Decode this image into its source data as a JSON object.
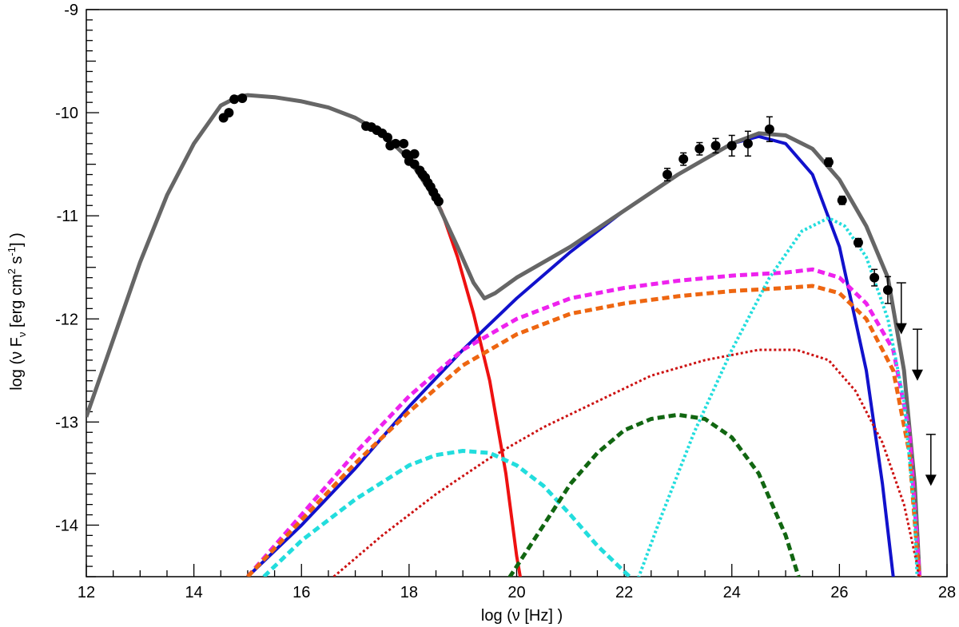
{
  "chart_data": {
    "type": "line",
    "xlabel": "log (ν [Hz] )",
    "ylabel": "log (ν F",
    "ylabel_sub": "ν",
    "ylabel_rest": " [erg cm",
    "ylabel_sup": "2",
    "ylabel_rest2": " s",
    "ylabel_sup2": "-1",
    "ylabel_end": "] )",
    "xlim": [
      12,
      28
    ],
    "ylim": [
      -14.5,
      -9
    ],
    "x_ticks": [
      12,
      14,
      16,
      18,
      20,
      22,
      24,
      26,
      28
    ],
    "y_ticks": [
      -14,
      -13,
      -12,
      -11,
      -10,
      -9
    ],
    "x_tick_labels": [
      "12",
      "14",
      "16",
      "18",
      "20",
      "22",
      "24",
      "26",
      "28"
    ],
    "y_tick_labels": [
      "-14",
      "-13",
      "-12",
      "-11",
      "-10",
      "-9"
    ],
    "grid": false,
    "colors": {
      "total": "#666666",
      "synchrotron": "#ee1111",
      "ssc": "#1111cc",
      "magenta": "#ee22ee",
      "orange": "#ee6611",
      "red_dotted": "#cc1111",
      "cyan_dashed": "#22dddd",
      "green_dashed": "#116611",
      "cyan_dotted": "#22dddd",
      "data": "#000000"
    },
    "series": [
      {
        "key": "synchrotron",
        "style": "solid",
        "width": 4,
        "x": [
          15,
          15.5,
          16,
          16.5,
          17,
          17.5,
          18,
          18.3,
          18.6,
          18.9,
          19.2,
          19.5,
          19.8,
          20.0,
          20.1
        ],
        "y": [
          -9.83,
          -9.85,
          -9.89,
          -9.95,
          -10.05,
          -10.2,
          -10.45,
          -10.65,
          -10.95,
          -11.4,
          -11.95,
          -12.6,
          -13.5,
          -14.3,
          -14.6
        ]
      },
      {
        "key": "ssc",
        "style": "solid",
        "width": 4,
        "x": [
          15,
          16,
          17,
          18,
          19,
          20,
          21,
          22,
          23,
          24,
          24.5,
          25,
          25.5,
          26,
          26.5,
          26.8,
          27.0,
          27.05
        ],
        "y": [
          -14.5,
          -14.0,
          -13.45,
          -12.85,
          -12.3,
          -11.8,
          -11.35,
          -10.95,
          -10.6,
          -10.3,
          -10.23,
          -10.3,
          -10.6,
          -11.3,
          -12.5,
          -13.6,
          -14.5,
          -14.6
        ]
      },
      {
        "key": "total",
        "style": "solid",
        "width": 5,
        "x": [
          12,
          12.5,
          13,
          13.5,
          14,
          14.5,
          14.8,
          15,
          15.5,
          16,
          16.5,
          17,
          17.5,
          18,
          18.5,
          18.9,
          19.2,
          19.4,
          19.6,
          20,
          21,
          22,
          23,
          24,
          24.5,
          25,
          25.5,
          26,
          26.5,
          26.9,
          27.2,
          27.4,
          27.5
        ],
        "y": [
          -12.95,
          -12.2,
          -11.45,
          -10.8,
          -10.3,
          -9.93,
          -9.85,
          -9.83,
          -9.85,
          -9.89,
          -9.95,
          -10.05,
          -10.2,
          -10.45,
          -10.85,
          -11.3,
          -11.65,
          -11.8,
          -11.75,
          -11.6,
          -11.3,
          -10.95,
          -10.6,
          -10.3,
          -10.2,
          -10.22,
          -10.35,
          -10.65,
          -11.1,
          -11.6,
          -12.5,
          -13.6,
          -14.6
        ]
      },
      {
        "key": "magenta",
        "style": "dashed",
        "width": 5,
        "x": [
          15,
          16,
          17,
          18,
          19,
          20,
          21,
          22,
          23,
          24,
          25,
          25.5,
          26,
          26.5,
          27,
          27.3,
          27.45,
          27.5
        ],
        "y": [
          -14.5,
          -13.9,
          -13.3,
          -12.75,
          -12.3,
          -12.0,
          -11.8,
          -11.7,
          -11.63,
          -11.58,
          -11.55,
          -11.52,
          -11.6,
          -11.85,
          -12.3,
          -13.1,
          -14.2,
          -14.6
        ]
      },
      {
        "key": "orange",
        "style": "dashed",
        "width": 5,
        "x": [
          15,
          16,
          17,
          18,
          19,
          20,
          21,
          22,
          23,
          24,
          25,
          25.5,
          26,
          26.5,
          27,
          27.3,
          27.45,
          27.5
        ],
        "y": [
          -14.5,
          -13.95,
          -13.4,
          -12.9,
          -12.45,
          -12.15,
          -11.95,
          -11.85,
          -11.78,
          -11.73,
          -11.7,
          -11.68,
          -11.75,
          -12.0,
          -12.5,
          -13.3,
          -14.3,
          -14.6
        ]
      },
      {
        "key": "red_dotted",
        "style": "dotted",
        "width": 3,
        "x": [
          16.6,
          17.5,
          18.5,
          19.5,
          20.5,
          21.5,
          22.5,
          23.5,
          24.5,
          25.2,
          25.8,
          26.3,
          26.8,
          27.2,
          27.45,
          27.5
        ],
        "y": [
          -14.5,
          -14.1,
          -13.7,
          -13.35,
          -13.05,
          -12.8,
          -12.55,
          -12.4,
          -12.3,
          -12.3,
          -12.4,
          -12.7,
          -13.2,
          -13.8,
          -14.4,
          -14.6
        ]
      },
      {
        "key": "cyan_dashed",
        "style": "dashed",
        "width": 5,
        "x": [
          15.3,
          16,
          17,
          18,
          18.5,
          19,
          19.5,
          20,
          20.5,
          21,
          21.5,
          22,
          22.3
        ],
        "y": [
          -14.5,
          -14.15,
          -13.75,
          -13.42,
          -13.32,
          -13.28,
          -13.3,
          -13.42,
          -13.62,
          -13.9,
          -14.2,
          -14.45,
          -14.6
        ]
      },
      {
        "key": "green_dashed",
        "style": "dashed",
        "width": 5,
        "x": [
          19.75,
          20.5,
          21,
          21.5,
          22,
          22.5,
          23,
          23.5,
          24,
          24.5,
          25,
          25.3
        ],
        "y": [
          -14.6,
          -14.0,
          -13.6,
          -13.3,
          -13.08,
          -12.97,
          -12.93,
          -12.97,
          -13.15,
          -13.5,
          -14.1,
          -14.6
        ]
      },
      {
        "key": "cyan_dotted",
        "style": "dotted",
        "width": 4,
        "x": [
          22.2,
          22.7,
          23.3,
          24,
          24.7,
          25.3,
          25.8,
          26.1,
          26.5,
          26.9,
          27.2,
          27.4,
          27.45
        ],
        "y": [
          -14.6,
          -13.9,
          -13.1,
          -12.3,
          -11.6,
          -11.15,
          -11.02,
          -11.1,
          -11.4,
          -12.0,
          -12.8,
          -13.9,
          -14.6
        ]
      }
    ],
    "data_points": [
      {
        "x": 14.55,
        "y": -10.05
      },
      {
        "x": 14.65,
        "y": -10.0
      },
      {
        "x": 14.75,
        "y": -9.87
      },
      {
        "x": 14.9,
        "y": -9.86
      },
      {
        "x": 17.2,
        "y": -10.13
      },
      {
        "x": 17.3,
        "y": -10.14
      },
      {
        "x": 17.4,
        "y": -10.17
      },
      {
        "x": 17.5,
        "y": -10.2
      },
      {
        "x": 17.6,
        "y": -10.24
      },
      {
        "x": 17.65,
        "y": -10.32
      },
      {
        "x": 17.75,
        "y": -10.3
      },
      {
        "x": 17.9,
        "y": -10.3
      },
      {
        "x": 17.95,
        "y": -10.4
      },
      {
        "x": 18.0,
        "y": -10.47
      },
      {
        "x": 18.1,
        "y": -10.5
      },
      {
        "x": 18.1,
        "y": -10.4
      },
      {
        "x": 18.2,
        "y": -10.56
      },
      {
        "x": 18.25,
        "y": -10.6
      },
      {
        "x": 18.3,
        "y": -10.63
      },
      {
        "x": 18.35,
        "y": -10.68
      },
      {
        "x": 18.4,
        "y": -10.72
      },
      {
        "x": 18.45,
        "y": -10.77
      },
      {
        "x": 18.5,
        "y": -10.82
      },
      {
        "x": 18.55,
        "y": -10.86
      },
      {
        "x": 22.8,
        "y": -10.6,
        "err": 0.06
      },
      {
        "x": 23.1,
        "y": -10.45,
        "err": 0.06
      },
      {
        "x": 23.4,
        "y": -10.35,
        "err": 0.06
      },
      {
        "x": 23.7,
        "y": -10.32,
        "err": 0.07
      },
      {
        "x": 24.0,
        "y": -10.32,
        "err": 0.1
      },
      {
        "x": 24.3,
        "y": -10.3,
        "err": 0.12
      },
      {
        "x": 24.7,
        "y": -10.16,
        "err": 0.12
      },
      {
        "x": 25.8,
        "y": -10.48,
        "err": 0.04
      },
      {
        "x": 26.05,
        "y": -10.85,
        "err": 0.04
      },
      {
        "x": 26.35,
        "y": -11.26,
        "err": 0.04
      },
      {
        "x": 26.65,
        "y": -11.6,
        "err": 0.08
      },
      {
        "x": 26.9,
        "y": -11.72,
        "err": 0.13
      }
    ],
    "upper_limits": [
      {
        "x": 27.15,
        "y_top": -11.65,
        "y_bottom": -12.15
      },
      {
        "x": 27.45,
        "y_top": -12.1,
        "y_bottom": -12.6
      },
      {
        "x": 27.7,
        "y_top": -13.12,
        "y_bottom": -13.62
      }
    ]
  }
}
